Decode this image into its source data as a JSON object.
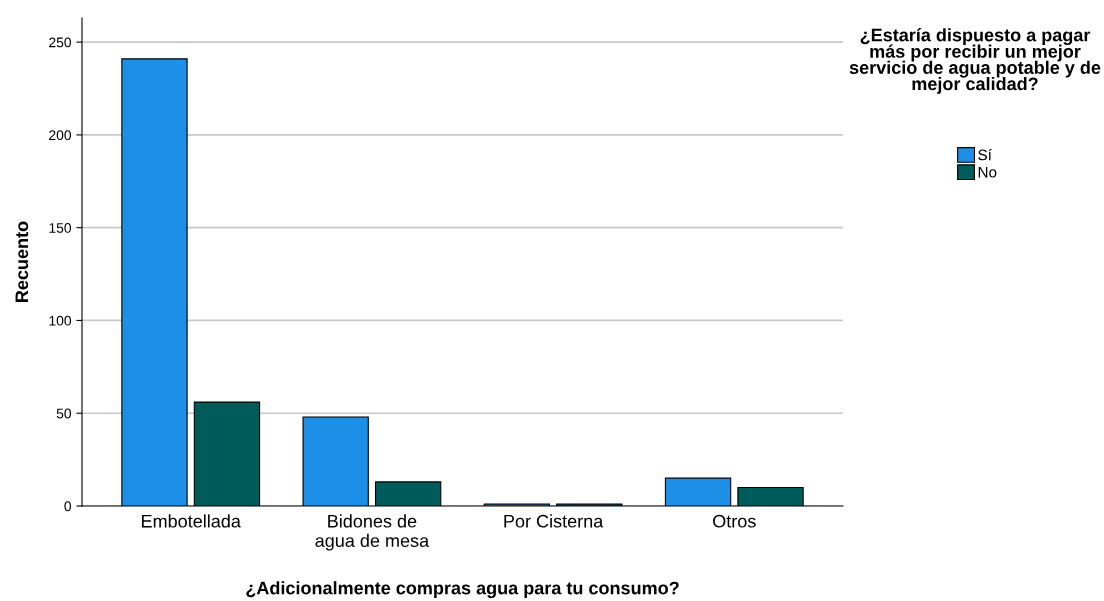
{
  "chart_data": {
    "type": "bar",
    "categories": [
      "Embotellada",
      "Bidones de agua de mesa",
      "Por Cisterna",
      "Otros"
    ],
    "series": [
      {
        "name": "Sí",
        "color": "#1e8fe6",
        "values": [
          241,
          48,
          1,
          15
        ]
      },
      {
        "name": "No",
        "color": "#005b5b",
        "values": [
          56,
          13,
          1,
          10
        ]
      }
    ],
    "xlabel": "¿Adicionalmente compras agua para tu consumo?",
    "ylabel": "Recuento",
    "legend_title": "¿Estaría dispuesto a pagar más por recibir un mejor servicio de agua potable y de mejor calidad?",
    "ylim": [
      0,
      263
    ],
    "yticks": [
      0,
      50,
      100,
      150,
      200,
      250
    ],
    "grid": "y",
    "legend": "right"
  }
}
